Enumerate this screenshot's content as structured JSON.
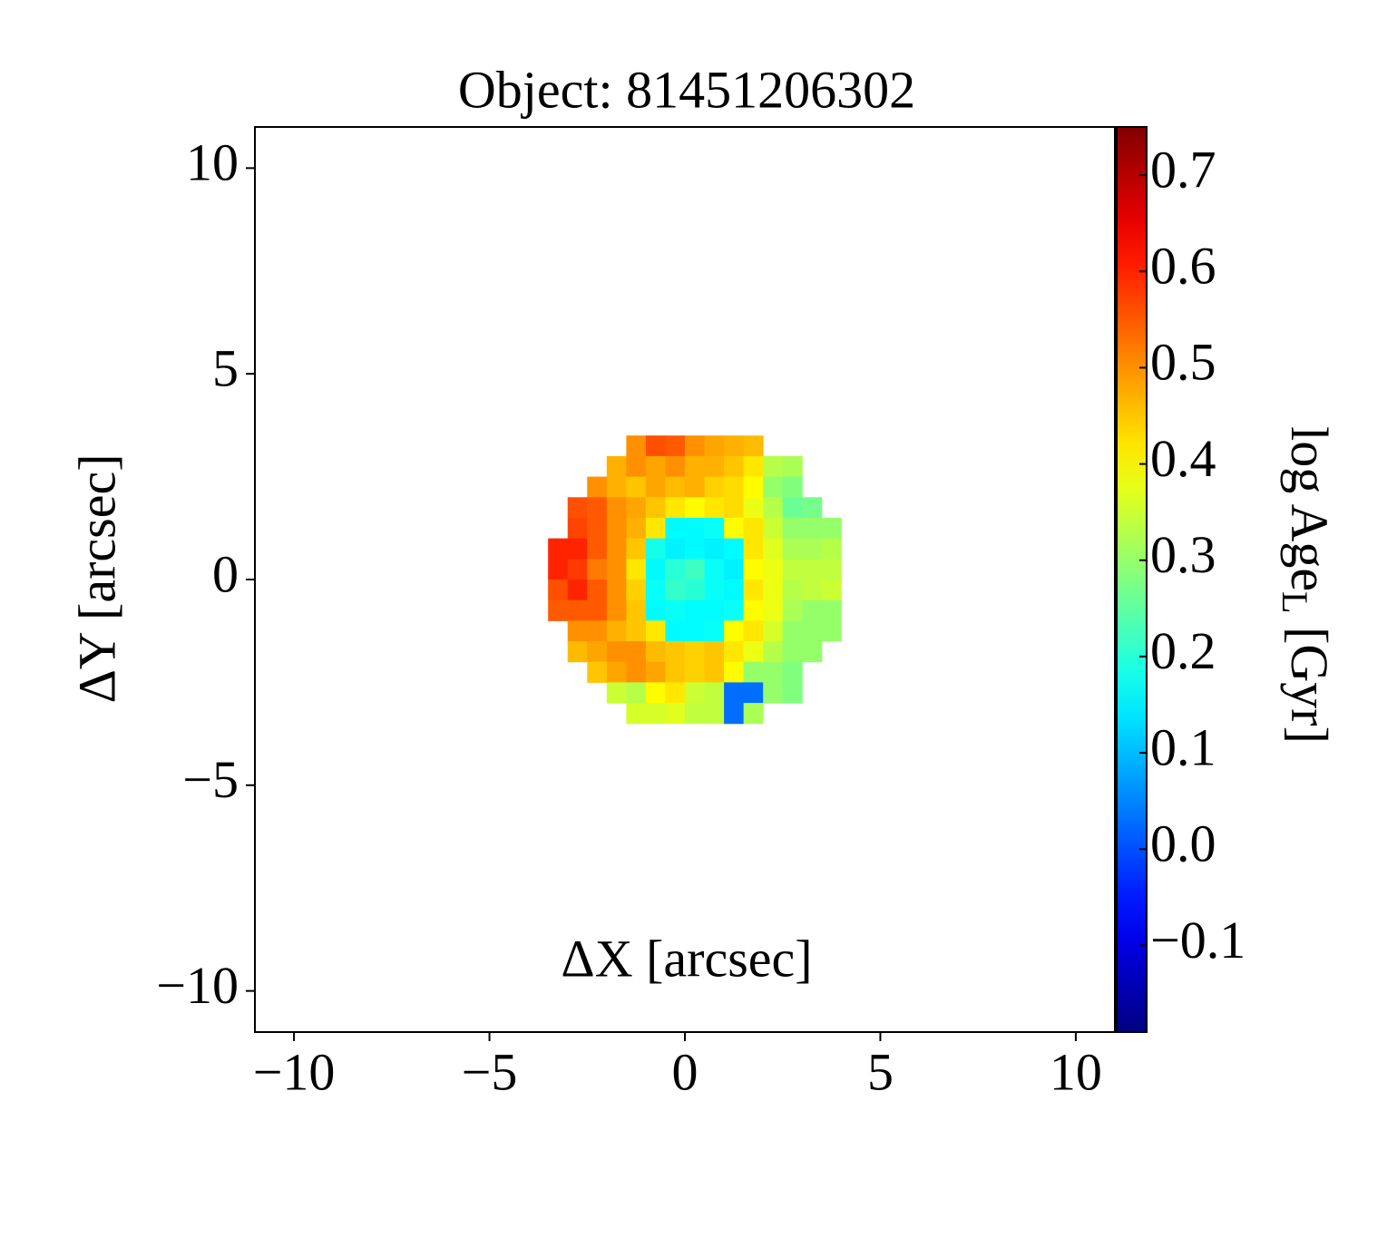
{
  "chart_data": {
    "type": "heatmap",
    "title": "Object: 81451206302",
    "xlabel": "ΔX [arcsec]",
    "ylabel": "ΔY [arcsec]",
    "colorbar_label": [
      "log Age",
      "L",
      " [Gyr]"
    ],
    "colormap": "jet",
    "xlim": [
      -11,
      11
    ],
    "ylim": [
      -11,
      11
    ],
    "xticks": [
      {
        "value": -10,
        "label": "−10"
      },
      {
        "value": -5,
        "label": "−5"
      },
      0,
      5,
      10
    ],
    "yticks": [
      {
        "value": -10,
        "label": "−10"
      },
      {
        "value": -5,
        "label": "−5"
      },
      0,
      5,
      10
    ],
    "clim": [
      -0.19,
      0.75
    ],
    "cticks": [
      {
        "value": -0.1,
        "label": "−0.1"
      },
      {
        "value": 0,
        "label": "0.0"
      },
      0.1,
      0.2,
      0.3,
      0.4,
      0.5,
      0.6,
      0.7
    ],
    "x": [
      -3.25,
      -2.75,
      -2.25,
      -1.75,
      -1.25,
      -0.75,
      -0.25,
      0.25,
      0.75,
      1.25,
      1.75,
      2.25,
      2.75,
      3.25,
      3.75
    ],
    "y": [
      3.25,
      2.75,
      2.25,
      1.75,
      1.25,
      0.75,
      0.25,
      -0.25,
      -0.75,
      -1.25,
      -1.75,
      -2.25,
      -2.75,
      -3.25
    ],
    "z": [
      [
        null,
        null,
        null,
        null,
        0.5,
        0.56,
        0.55,
        0.5,
        0.48,
        0.47,
        0.46,
        null,
        null,
        null,
        null
      ],
      [
        null,
        null,
        null,
        0.47,
        0.5,
        0.48,
        0.5,
        0.47,
        0.47,
        0.45,
        0.42,
        0.33,
        0.32,
        null,
        null
      ],
      [
        null,
        null,
        0.5,
        0.47,
        0.45,
        0.48,
        0.46,
        0.47,
        0.44,
        0.43,
        0.4,
        0.3,
        0.28,
        null,
        null
      ],
      [
        null,
        0.56,
        0.55,
        0.5,
        0.48,
        0.45,
        0.42,
        0.4,
        0.42,
        0.43,
        0.38,
        0.33,
        0.26,
        0.27,
        null
      ],
      [
        null,
        0.57,
        0.55,
        0.5,
        0.47,
        0.42,
        0.16,
        0.16,
        0.17,
        0.4,
        0.42,
        0.35,
        0.3,
        0.3,
        0.3
      ],
      [
        0.6,
        0.6,
        0.55,
        0.5,
        0.45,
        0.18,
        0.15,
        0.16,
        0.15,
        0.16,
        0.42,
        0.37,
        0.32,
        0.32,
        0.33
      ],
      [
        0.6,
        0.58,
        0.52,
        0.5,
        0.42,
        0.16,
        0.2,
        0.22,
        0.17,
        0.15,
        0.4,
        0.38,
        0.34,
        0.34,
        0.34
      ],
      [
        0.56,
        0.6,
        0.55,
        0.5,
        0.44,
        0.17,
        0.21,
        0.2,
        0.17,
        0.16,
        0.42,
        0.38,
        0.33,
        0.34,
        0.35
      ],
      [
        0.55,
        0.55,
        0.55,
        0.5,
        0.45,
        0.16,
        0.17,
        0.16,
        0.16,
        0.17,
        0.4,
        0.38,
        0.32,
        0.3,
        0.3
      ],
      [
        null,
        0.5,
        0.5,
        0.47,
        0.45,
        0.42,
        0.16,
        0.16,
        0.17,
        0.4,
        0.42,
        0.36,
        0.3,
        0.3,
        0.3
      ],
      [
        null,
        0.46,
        0.48,
        0.5,
        0.5,
        0.46,
        0.45,
        0.44,
        0.45,
        0.42,
        0.38,
        0.33,
        0.3,
        0.3,
        null
      ],
      [
        null,
        null,
        0.45,
        0.48,
        0.5,
        0.48,
        0.45,
        0.44,
        0.45,
        0.4,
        0.3,
        0.3,
        0.28,
        null,
        null
      ],
      [
        null,
        null,
        null,
        0.35,
        0.33,
        0.4,
        0.42,
        0.35,
        0.34,
        0.03,
        0.03,
        0.3,
        0.28,
        null,
        null
      ],
      [
        null,
        null,
        null,
        null,
        0.36,
        0.36,
        0.37,
        0.34,
        0.34,
        0.03,
        0.32,
        null,
        null,
        null,
        null
      ]
    ]
  }
}
